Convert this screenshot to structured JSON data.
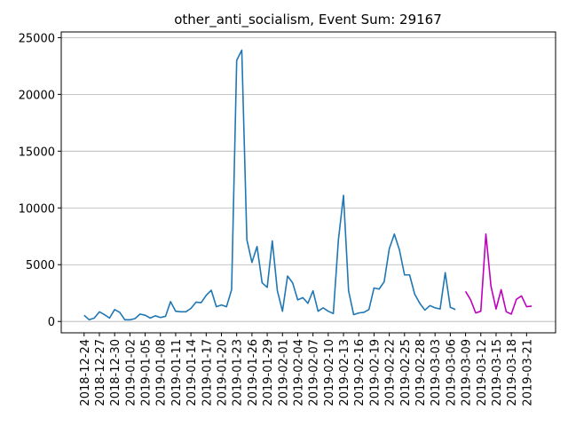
{
  "chart_data": {
    "type": "line",
    "title": "other_anti_socialism, Event Sum: 29167",
    "xlabel": "",
    "ylabel": "",
    "ylim": [
      -1000,
      25500
    ],
    "yticks": [
      0,
      5000,
      10000,
      15000,
      20000,
      25000
    ],
    "grid": "y-axis horizontal lines",
    "x_start": "2018-12-24",
    "x_ticks": [
      "2018-12-24",
      "2018-12-27",
      "2018-12-30",
      "2019-01-02",
      "2019-01-05",
      "2019-01-08",
      "2019-01-11",
      "2019-01-14",
      "2019-01-17",
      "2019-01-20",
      "2019-01-23",
      "2019-01-26",
      "2019-01-29",
      "2019-02-01",
      "2019-02-04",
      "2019-02-07",
      "2019-02-10",
      "2019-02-13",
      "2019-02-16",
      "2019-02-19",
      "2019-02-22",
      "2019-02-25",
      "2019-02-28",
      "2019-03-03",
      "2019-03-06",
      "2019-03-09",
      "2019-03-12",
      "2019-03-15",
      "2019-03-18",
      "2019-03-21"
    ],
    "series": [
      {
        "color": "#1f77b4",
        "values": [
          [
            "2018-12-24",
            550
          ],
          [
            "2018-12-25",
            150
          ],
          [
            "2018-12-26",
            300
          ],
          [
            "2018-12-27",
            850
          ],
          [
            "2018-12-28",
            600
          ],
          [
            "2018-12-29",
            300
          ],
          [
            "2018-12-30",
            1050
          ],
          [
            "2018-12-31",
            800
          ],
          [
            "2019-01-01",
            150
          ],
          [
            "2019-01-02",
            150
          ],
          [
            "2019-01-03",
            250
          ],
          [
            "2019-01-04",
            650
          ],
          [
            "2019-01-05",
            550
          ],
          [
            "2019-01-06",
            300
          ],
          [
            "2019-01-07",
            500
          ],
          [
            "2019-01-08",
            350
          ],
          [
            "2019-01-09",
            450
          ],
          [
            "2019-01-10",
            1750
          ],
          [
            "2019-01-11",
            900
          ],
          [
            "2019-01-12",
            850
          ],
          [
            "2019-01-13",
            850
          ],
          [
            "2019-01-14",
            1150
          ],
          [
            "2019-01-15",
            1700
          ],
          [
            "2019-01-16",
            1650
          ],
          [
            "2019-01-17",
            2300
          ],
          [
            "2019-01-18",
            2750
          ],
          [
            "2019-01-19",
            1300
          ],
          [
            "2019-01-20",
            1450
          ],
          [
            "2019-01-21",
            1300
          ],
          [
            "2019-01-22",
            2800
          ],
          [
            "2019-01-23",
            23000
          ],
          [
            "2019-01-24",
            23900
          ],
          [
            "2019-01-25",
            7200
          ],
          [
            "2019-01-26",
            5200
          ],
          [
            "2019-01-27",
            6600
          ],
          [
            "2019-01-28",
            3400
          ],
          [
            "2019-01-29",
            3000
          ],
          [
            "2019-01-30",
            7100
          ],
          [
            "2019-01-31",
            2700
          ],
          [
            "2019-02-01",
            900
          ],
          [
            "2019-02-02",
            4000
          ],
          [
            "2019-02-03",
            3400
          ],
          [
            "2019-02-04",
            1900
          ],
          [
            "2019-02-05",
            2100
          ],
          [
            "2019-02-06",
            1600
          ],
          [
            "2019-02-07",
            2700
          ],
          [
            "2019-02-08",
            900
          ],
          [
            "2019-02-09",
            1200
          ],
          [
            "2019-02-10",
            900
          ],
          [
            "2019-02-11",
            700
          ],
          [
            "2019-02-12",
            7200
          ],
          [
            "2019-02-13",
            11100
          ],
          [
            "2019-02-14",
            2700
          ],
          [
            "2019-02-15",
            600
          ],
          [
            "2019-02-16",
            750
          ],
          [
            "2019-02-17",
            800
          ],
          [
            "2019-02-18",
            1050
          ],
          [
            "2019-02-19",
            2950
          ],
          [
            "2019-02-20",
            2850
          ],
          [
            "2019-02-21",
            3500
          ],
          [
            "2019-02-22",
            6400
          ],
          [
            "2019-02-23",
            7700
          ],
          [
            "2019-02-24",
            6300
          ],
          [
            "2019-02-25",
            4100
          ],
          [
            "2019-02-26",
            4100
          ],
          [
            "2019-02-27",
            2400
          ],
          [
            "2019-02-28",
            1600
          ],
          [
            "2019-03-01",
            1000
          ],
          [
            "2019-03-02",
            1400
          ],
          [
            "2019-03-03",
            1200
          ],
          [
            "2019-03-04",
            1100
          ],
          [
            "2019-03-05",
            4300
          ],
          [
            "2019-03-06",
            1250
          ],
          [
            "2019-03-07",
            1050
          ]
        ]
      },
      {
        "color": "#bf00bf",
        "values": [
          [
            "2019-03-09",
            2650
          ],
          [
            "2019-03-10",
            1900
          ],
          [
            "2019-03-11",
            750
          ],
          [
            "2019-03-12",
            900
          ],
          [
            "2019-03-13",
            7700
          ],
          [
            "2019-03-14",
            3100
          ],
          [
            "2019-03-15",
            1100
          ],
          [
            "2019-03-16",
            2800
          ],
          [
            "2019-03-17",
            850
          ],
          [
            "2019-03-18",
            650
          ],
          [
            "2019-03-19",
            1950
          ],
          [
            "2019-03-20",
            2250
          ],
          [
            "2019-03-21",
            1300
          ],
          [
            "2019-03-22",
            1350
          ]
        ]
      }
    ]
  }
}
